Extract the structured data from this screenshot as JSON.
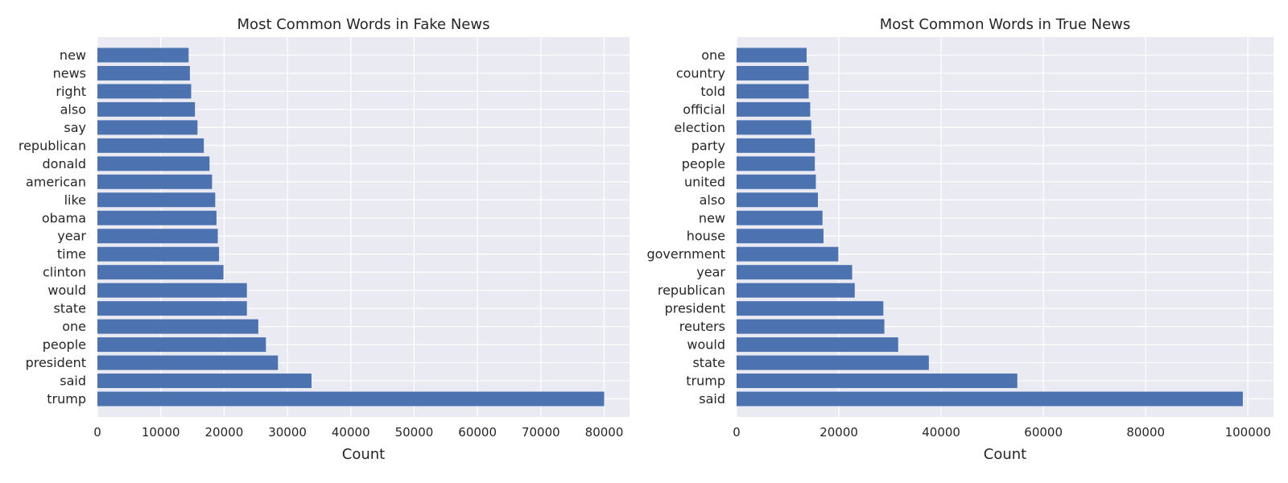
{
  "chart_data": [
    {
      "type": "bar",
      "orientation": "horizontal",
      "title": "Most Common Words in Fake News",
      "xlabel": "Count",
      "ylabel": "",
      "categories": [
        "trump",
        "said",
        "president",
        "people",
        "one",
        "state",
        "would",
        "clinton",
        "time",
        "year",
        "obama",
        "like",
        "american",
        "donald",
        "republican",
        "say",
        "also",
        "right",
        "news",
        "new"
      ],
      "values": [
        80000,
        33800,
        28500,
        26600,
        25400,
        23600,
        23600,
        19900,
        19200,
        19000,
        18800,
        18600,
        18100,
        17700,
        16800,
        15800,
        15400,
        14800,
        14600,
        14400
      ],
      "xlim": [
        0,
        84000
      ],
      "xticks": [
        0,
        10000,
        20000,
        30000,
        40000,
        50000,
        60000,
        70000,
        80000
      ],
      "xtick_labels": [
        "0",
        "10000",
        "20000",
        "30000",
        "40000",
        "50000",
        "60000",
        "70000",
        "80000"
      ],
      "grid": true,
      "color": "#4c72b0"
    },
    {
      "type": "bar",
      "orientation": "horizontal",
      "title": "Most Common Words in True News",
      "xlabel": "Count",
      "ylabel": "",
      "categories": [
        "said",
        "trump",
        "state",
        "would",
        "reuters",
        "president",
        "republican",
        "year",
        "government",
        "house",
        "new",
        "also",
        "united",
        "people",
        "party",
        "election",
        "official",
        "told",
        "country",
        "one"
      ],
      "values": [
        99000,
        54900,
        37600,
        31600,
        28900,
        28700,
        23100,
        22600,
        19900,
        17000,
        16800,
        15900,
        15500,
        15300,
        15300,
        14600,
        14400,
        14100,
        14100,
        13700
      ],
      "xlim": [
        0,
        105000
      ],
      "xticks": [
        0,
        20000,
        40000,
        60000,
        80000,
        100000
      ],
      "xtick_labels": [
        "0",
        "20000",
        "40000",
        "60000",
        "80000",
        "100000"
      ],
      "grid": true,
      "color": "#4c72b0"
    }
  ]
}
